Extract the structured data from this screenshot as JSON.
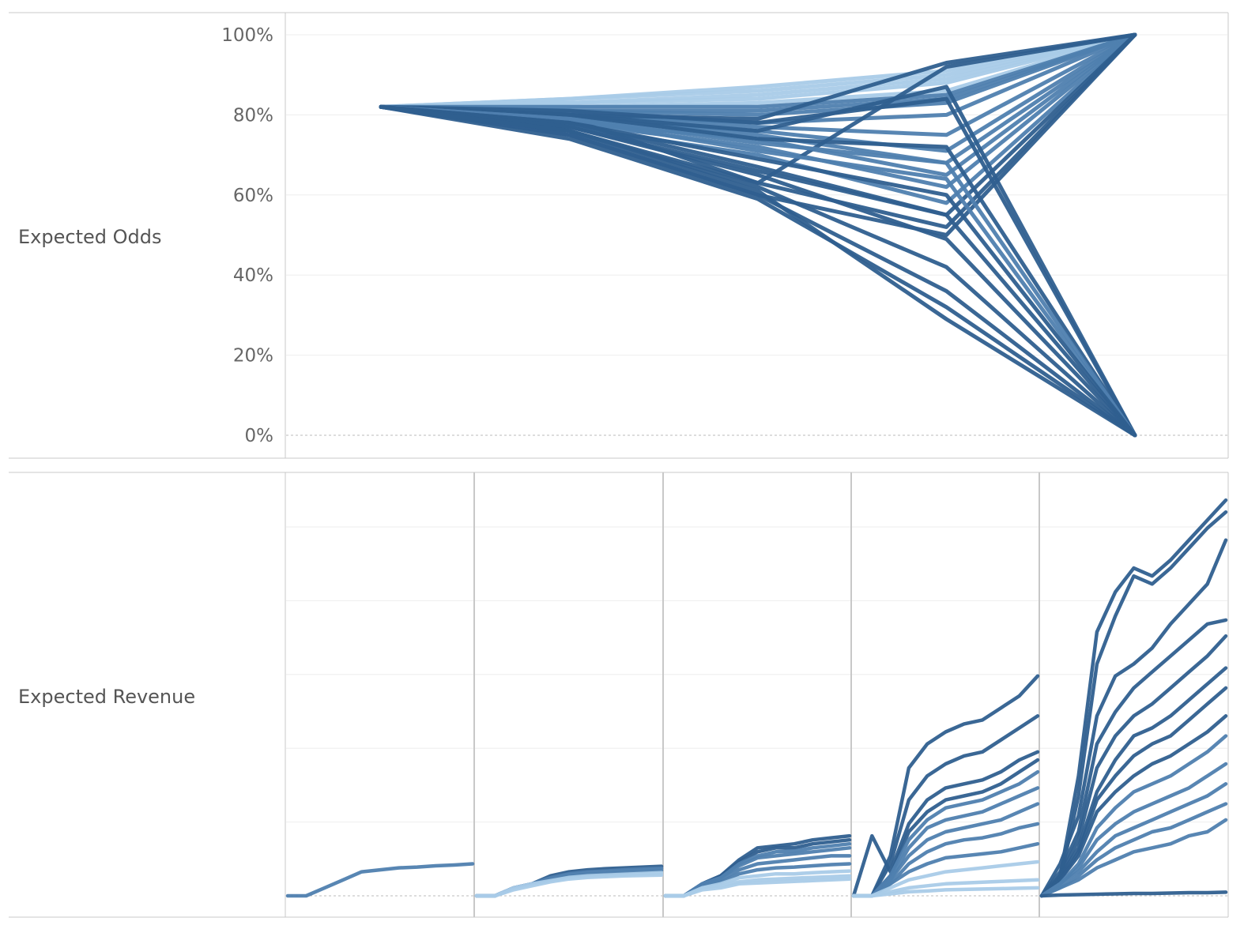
{
  "colors": {
    "dark": "#2f5f8f",
    "mid": "#4f7faf",
    "light": "#a9cbe8",
    "grid": "#eeeeee",
    "border": "#c8c8c8",
    "zero": "#bbbbbb"
  },
  "chart_data": [
    {
      "type": "line",
      "name": "odds",
      "ylabel": "Expected Odds",
      "ylim": [
        0,
        1
      ],
      "yticks": [
        {
          "value": 0,
          "label": "0%"
        },
        {
          "value": 0.2,
          "label": "20%"
        },
        {
          "value": 0.4,
          "label": "40%"
        },
        {
          "value": 0.6,
          "label": "60%"
        },
        {
          "value": 0.8,
          "label": "80%"
        },
        {
          "value": 1.0,
          "label": "100%"
        }
      ],
      "x": [
        0,
        1,
        2,
        3,
        4
      ],
      "series": [
        {
          "values": [
            0.82,
            0.84,
            0.87,
            0.91,
            1.0
          ],
          "tone": "light"
        },
        {
          "values": [
            0.82,
            0.84,
            0.86,
            0.9,
            1.0
          ],
          "tone": "light"
        },
        {
          "values": [
            0.82,
            0.83,
            0.85,
            0.89,
            1.0
          ],
          "tone": "light"
        },
        {
          "values": [
            0.82,
            0.83,
            0.84,
            0.88,
            1.0
          ],
          "tone": "light"
        },
        {
          "values": [
            0.82,
            0.82,
            0.83,
            0.86,
            1.0
          ],
          "tone": "light"
        },
        {
          "values": [
            0.82,
            0.82,
            0.82,
            0.85,
            1.0
          ],
          "tone": "mid"
        },
        {
          "values": [
            0.82,
            0.81,
            0.81,
            0.84,
            1.0
          ],
          "tone": "mid"
        },
        {
          "values": [
            0.82,
            0.81,
            0.8,
            0.83,
            1.0
          ],
          "tone": "mid"
        },
        {
          "values": [
            0.82,
            0.8,
            0.78,
            0.8,
            1.0
          ],
          "tone": "mid"
        },
        {
          "values": [
            0.82,
            0.8,
            0.77,
            0.75,
            1.0
          ],
          "tone": "mid"
        },
        {
          "values": [
            0.82,
            0.79,
            0.76,
            0.71,
            1.0
          ],
          "tone": "mid"
        },
        {
          "values": [
            0.82,
            0.79,
            0.75,
            0.68,
            1.0
          ],
          "tone": "mid"
        },
        {
          "values": [
            0.82,
            0.78,
            0.74,
            0.65,
            1.0
          ],
          "tone": "mid"
        },
        {
          "values": [
            0.82,
            0.78,
            0.72,
            0.62,
            1.0
          ],
          "tone": "mid"
        },
        {
          "values": [
            0.82,
            0.77,
            0.7,
            0.58,
            1.0
          ],
          "tone": "mid"
        },
        {
          "values": [
            0.82,
            0.77,
            0.66,
            0.55,
            1.0
          ],
          "tone": "dark"
        },
        {
          "values": [
            0.82,
            0.76,
            0.63,
            0.52,
            1.0
          ],
          "tone": "dark"
        },
        {
          "values": [
            0.82,
            0.75,
            0.6,
            0.5,
            1.0
          ],
          "tone": "dark"
        },
        {
          "values": [
            0.82,
            0.8,
            0.79,
            0.93,
            1.0
          ],
          "tone": "dark"
        },
        {
          "values": [
            0.82,
            0.79,
            0.63,
            0.92,
            1.0
          ],
          "tone": "dark"
        },
        {
          "values": [
            0.82,
            0.81,
            0.78,
            0.84,
            0.0
          ],
          "tone": "dark"
        },
        {
          "values": [
            0.82,
            0.8,
            0.76,
            0.87,
            0.0
          ],
          "tone": "dark"
        },
        {
          "values": [
            0.82,
            0.8,
            0.74,
            0.72,
            0.0
          ],
          "tone": "dark"
        },
        {
          "values": [
            0.82,
            0.79,
            0.73,
            0.68,
            0.0
          ],
          "tone": "mid"
        },
        {
          "values": [
            0.82,
            0.79,
            0.71,
            0.64,
            0.0
          ],
          "tone": "mid"
        },
        {
          "values": [
            0.82,
            0.78,
            0.69,
            0.6,
            0.0
          ],
          "tone": "dark"
        },
        {
          "values": [
            0.82,
            0.78,
            0.67,
            0.55,
            0.0
          ],
          "tone": "dark"
        },
        {
          "values": [
            0.82,
            0.77,
            0.65,
            0.49,
            0.0
          ],
          "tone": "dark"
        },
        {
          "values": [
            0.82,
            0.76,
            0.62,
            0.42,
            0.0
          ],
          "tone": "dark"
        },
        {
          "values": [
            0.82,
            0.75,
            0.6,
            0.36,
            0.0
          ],
          "tone": "dark"
        },
        {
          "values": [
            0.82,
            0.74,
            0.59,
            0.32,
            0.0
          ],
          "tone": "dark"
        },
        {
          "values": [
            0.82,
            0.76,
            0.61,
            0.29,
            0.0
          ],
          "tone": "dark"
        }
      ]
    },
    {
      "type": "line",
      "name": "revenue",
      "ylabel": "Expected Revenue",
      "ylim": [
        0,
        1
      ],
      "panels": 5,
      "x": [
        0,
        0.1,
        0.2,
        0.3,
        0.4,
        0.5,
        0.6,
        0.7,
        0.8,
        0.9,
        1.0
      ],
      "series": [
        {
          "panel": 0,
          "values": [
            0,
            0,
            0.02,
            0.04,
            0.06,
            0.065,
            0.07,
            0.072,
            0.075,
            0.077,
            0.08
          ],
          "tone": "mid"
        },
        {
          "panel": 1,
          "values": [
            0,
            0,
            0.02,
            0.03,
            0.05,
            0.06,
            0.065,
            0.068,
            0.07,
            0.072,
            0.074
          ],
          "tone": "dark"
        },
        {
          "panel": 1,
          "values": [
            0,
            0,
            0.02,
            0.03,
            0.045,
            0.055,
            0.06,
            0.062,
            0.065,
            0.067,
            0.069
          ],
          "tone": "mid"
        },
        {
          "panel": 1,
          "values": [
            0,
            0,
            0.02,
            0.03,
            0.04,
            0.05,
            0.055,
            0.057,
            0.06,
            0.062,
            0.064
          ],
          "tone": "mid"
        },
        {
          "panel": 1,
          "values": [
            0,
            0,
            0.02,
            0.03,
            0.038,
            0.046,
            0.05,
            0.052,
            0.054,
            0.056,
            0.058
          ],
          "tone": "light"
        },
        {
          "panel": 1,
          "values": [
            0,
            0,
            0.015,
            0.025,
            0.035,
            0.042,
            0.046,
            0.048,
            0.05,
            0.051,
            0.052
          ],
          "tone": "light"
        },
        {
          "panel": 2,
          "values": [
            0,
            0,
            0.03,
            0.05,
            0.09,
            0.12,
            0.125,
            0.13,
            0.14,
            0.145,
            0.15
          ],
          "tone": "dark"
        },
        {
          "panel": 2,
          "values": [
            0,
            0,
            0.03,
            0.05,
            0.085,
            0.11,
            0.12,
            0.12,
            0.13,
            0.135,
            0.14
          ],
          "tone": "dark"
        },
        {
          "panel": 2,
          "values": [
            0,
            0,
            0.03,
            0.045,
            0.08,
            0.1,
            0.11,
            0.112,
            0.12,
            0.125,
            0.13
          ],
          "tone": "mid"
        },
        {
          "panel": 2,
          "values": [
            0,
            0,
            0.03,
            0.045,
            0.075,
            0.095,
            0.1,
            0.105,
            0.11,
            0.115,
            0.12
          ],
          "tone": "mid"
        },
        {
          "panel": 2,
          "values": [
            0,
            0,
            0.025,
            0.04,
            0.065,
            0.08,
            0.085,
            0.09,
            0.095,
            0.1,
            0.1
          ],
          "tone": "mid"
        },
        {
          "panel": 2,
          "values": [
            0,
            0,
            0.025,
            0.035,
            0.055,
            0.065,
            0.07,
            0.072,
            0.075,
            0.078,
            0.08
          ],
          "tone": "mid"
        },
        {
          "panel": 2,
          "values": [
            0,
            0,
            0.02,
            0.03,
            0.045,
            0.05,
            0.055,
            0.055,
            0.058,
            0.06,
            0.062
          ],
          "tone": "light"
        },
        {
          "panel": 2,
          "values": [
            0,
            0,
            0.02,
            0.025,
            0.035,
            0.04,
            0.042,
            0.044,
            0.046,
            0.048,
            0.05
          ],
          "tone": "light"
        },
        {
          "panel": 2,
          "values": [
            0,
            0,
            0.015,
            0.02,
            0.03,
            0.032,
            0.034,
            0.036,
            0.038,
            0.04,
            0.042
          ],
          "tone": "light"
        },
        {
          "panel": 3,
          "values": [
            0,
            0,
            0.1,
            0.32,
            0.38,
            0.41,
            0.43,
            0.44,
            0.47,
            0.5,
            0.55
          ],
          "tone": "dark"
        },
        {
          "panel": 3,
          "values": [
            0,
            0,
            0.08,
            0.24,
            0.3,
            0.33,
            0.35,
            0.36,
            0.39,
            0.42,
            0.45
          ],
          "tone": "dark"
        },
        {
          "panel": 3,
          "values": [
            0,
            0.15,
            0.06,
            0.18,
            0.24,
            0.27,
            0.28,
            0.29,
            0.31,
            0.34,
            0.36
          ],
          "tone": "dark"
        },
        {
          "panel": 3,
          "values": [
            0,
            0,
            0.05,
            0.16,
            0.21,
            0.24,
            0.25,
            0.26,
            0.28,
            0.31,
            0.34
          ],
          "tone": "dark"
        },
        {
          "panel": 3,
          "values": [
            0,
            0,
            0.05,
            0.14,
            0.19,
            0.22,
            0.23,
            0.24,
            0.26,
            0.28,
            0.31
          ],
          "tone": "mid"
        },
        {
          "panel": 3,
          "values": [
            0,
            0,
            0.04,
            0.12,
            0.17,
            0.19,
            0.2,
            0.21,
            0.23,
            0.25,
            0.27
          ],
          "tone": "mid"
        },
        {
          "panel": 3,
          "values": [
            0,
            0,
            0.04,
            0.1,
            0.14,
            0.16,
            0.17,
            0.18,
            0.19,
            0.21,
            0.23
          ],
          "tone": "mid"
        },
        {
          "panel": 3,
          "values": [
            0,
            0,
            0.03,
            0.08,
            0.11,
            0.13,
            0.14,
            0.145,
            0.155,
            0.17,
            0.18
          ],
          "tone": "mid"
        },
        {
          "panel": 3,
          "values": [
            0,
            0,
            0.03,
            0.06,
            0.08,
            0.095,
            0.1,
            0.105,
            0.11,
            0.12,
            0.13
          ],
          "tone": "mid"
        },
        {
          "panel": 3,
          "values": [
            0,
            0,
            0.02,
            0.04,
            0.05,
            0.06,
            0.065,
            0.07,
            0.075,
            0.08,
            0.085
          ],
          "tone": "light"
        },
        {
          "panel": 3,
          "values": [
            0,
            0,
            0.01,
            0.02,
            0.025,
            0.03,
            0.032,
            0.034,
            0.036,
            0.038,
            0.04
          ],
          "tone": "light"
        },
        {
          "panel": 3,
          "values": [
            0,
            0,
            0.005,
            0.01,
            0.012,
            0.015,
            0.016,
            0.017,
            0.018,
            0.019,
            0.02
          ],
          "tone": "light"
        },
        {
          "panel": 4,
          "values": [
            0,
            0.05,
            0.3,
            0.66,
            0.76,
            0.82,
            0.8,
            0.84,
            0.89,
            0.94,
            0.99
          ],
          "tone": "dark"
        },
        {
          "panel": 4,
          "values": [
            0,
            0.04,
            0.25,
            0.58,
            0.7,
            0.8,
            0.78,
            0.82,
            0.87,
            0.92,
            0.96
          ],
          "tone": "dark"
        },
        {
          "panel": 4,
          "values": [
            0,
            0.08,
            0.2,
            0.45,
            0.55,
            0.58,
            0.62,
            0.68,
            0.73,
            0.78,
            0.89
          ],
          "tone": "dark"
        },
        {
          "panel": 4,
          "values": [
            0,
            0.06,
            0.16,
            0.38,
            0.46,
            0.52,
            0.56,
            0.6,
            0.64,
            0.68,
            0.69
          ],
          "tone": "dark"
        },
        {
          "panel": 4,
          "values": [
            0,
            0.05,
            0.14,
            0.32,
            0.4,
            0.45,
            0.48,
            0.52,
            0.56,
            0.6,
            0.65
          ],
          "tone": "dark"
        },
        {
          "panel": 4,
          "values": [
            0,
            0.05,
            0.12,
            0.26,
            0.34,
            0.4,
            0.42,
            0.45,
            0.49,
            0.53,
            0.57
          ],
          "tone": "dark"
        },
        {
          "panel": 4,
          "values": [
            0,
            0.04,
            0.11,
            0.24,
            0.3,
            0.35,
            0.38,
            0.4,
            0.44,
            0.48,
            0.52
          ],
          "tone": "dark"
        },
        {
          "panel": 4,
          "values": [
            0,
            0.04,
            0.1,
            0.21,
            0.26,
            0.3,
            0.33,
            0.35,
            0.38,
            0.41,
            0.45
          ],
          "tone": "dark"
        },
        {
          "panel": 4,
          "values": [
            0,
            0.03,
            0.08,
            0.17,
            0.22,
            0.26,
            0.28,
            0.3,
            0.33,
            0.36,
            0.4
          ],
          "tone": "mid"
        },
        {
          "panel": 4,
          "values": [
            0,
            0.03,
            0.07,
            0.14,
            0.18,
            0.21,
            0.23,
            0.25,
            0.27,
            0.3,
            0.33
          ],
          "tone": "mid"
        },
        {
          "panel": 4,
          "values": [
            0,
            0.03,
            0.06,
            0.11,
            0.15,
            0.17,
            0.19,
            0.21,
            0.23,
            0.25,
            0.28
          ],
          "tone": "mid"
        },
        {
          "panel": 4,
          "values": [
            0,
            0.02,
            0.05,
            0.09,
            0.12,
            0.14,
            0.16,
            0.17,
            0.19,
            0.21,
            0.23
          ],
          "tone": "mid"
        },
        {
          "panel": 4,
          "values": [
            0,
            0.02,
            0.04,
            0.07,
            0.09,
            0.11,
            0.12,
            0.13,
            0.15,
            0.16,
            0.19
          ],
          "tone": "mid"
        },
        {
          "panel": 4,
          "values": [
            0,
            0.002,
            0.003,
            0.004,
            0.005,
            0.006,
            0.006,
            0.007,
            0.008,
            0.008,
            0.009
          ],
          "tone": "dark"
        }
      ]
    }
  ]
}
